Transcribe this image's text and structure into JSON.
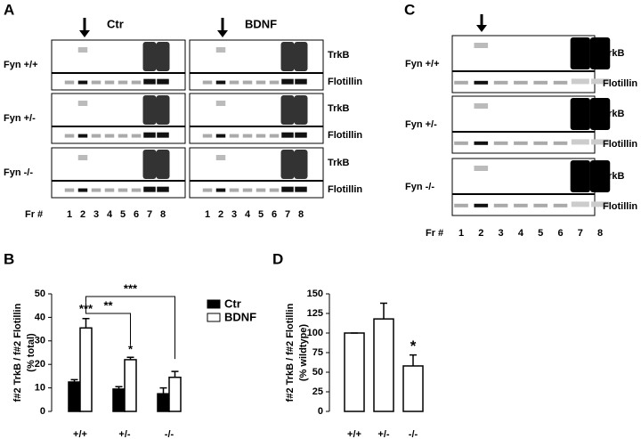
{
  "panel_a": {
    "letter": "A",
    "conditions": [
      "Ctr",
      "BDNF"
    ],
    "genotypes": [
      "Fyn +/+",
      "Fyn +/-",
      "Fyn -/-"
    ],
    "bands": [
      "TrkB",
      "Flotillin"
    ],
    "fraction_label": "Fr #",
    "fractions": [
      1,
      2,
      3,
      4,
      5,
      6,
      7,
      8
    ]
  },
  "panel_c": {
    "letter": "C",
    "genotypes": [
      "Fyn +/+",
      "Fyn +/-",
      "Fyn -/-"
    ],
    "bands": [
      "TrkB",
      "Flotillin"
    ],
    "fraction_label": "Fr #",
    "fractions": [
      1,
      2,
      3,
      4,
      5,
      6,
      7,
      8
    ]
  },
  "chart_data": [
    {
      "type": "bar",
      "panel": "B",
      "ylabel": [
        "f#2 TrkB / f#2 Flotillin",
        "(% total)"
      ],
      "categories": [
        "+/+",
        "+/-",
        "-/-"
      ],
      "series": [
        {
          "name": "Ctr",
          "color": "#000000",
          "values": [
            12.5,
            9.5,
            7.5
          ],
          "errors": [
            1,
            1,
            2.5
          ]
        },
        {
          "name": "BDNF",
          "color": "#ffffff",
          "values": [
            35.5,
            22,
            14.5
          ],
          "errors": [
            4,
            1,
            2.5
          ]
        }
      ],
      "annotations": [
        "***",
        "*",
        "**",
        "***"
      ],
      "ylim": [
        0,
        50
      ],
      "yticks": [
        0,
        10,
        20,
        30,
        40,
        50
      ],
      "legend": "right"
    },
    {
      "type": "bar",
      "panel": "D",
      "ylabel": [
        "f#2 TrkB / f#2 Flotillin",
        "(% wildtype)"
      ],
      "categories": [
        "+/+",
        "+/-",
        "-/-"
      ],
      "series": [
        {
          "color": "#ffffff",
          "values": [
            100,
            118,
            58
          ],
          "errors": [
            0,
            20,
            14
          ]
        }
      ],
      "annotations": [
        "*"
      ],
      "ylim": [
        0,
        150
      ],
      "yticks": [
        0,
        25,
        50,
        75,
        100,
        125,
        150
      ]
    }
  ]
}
